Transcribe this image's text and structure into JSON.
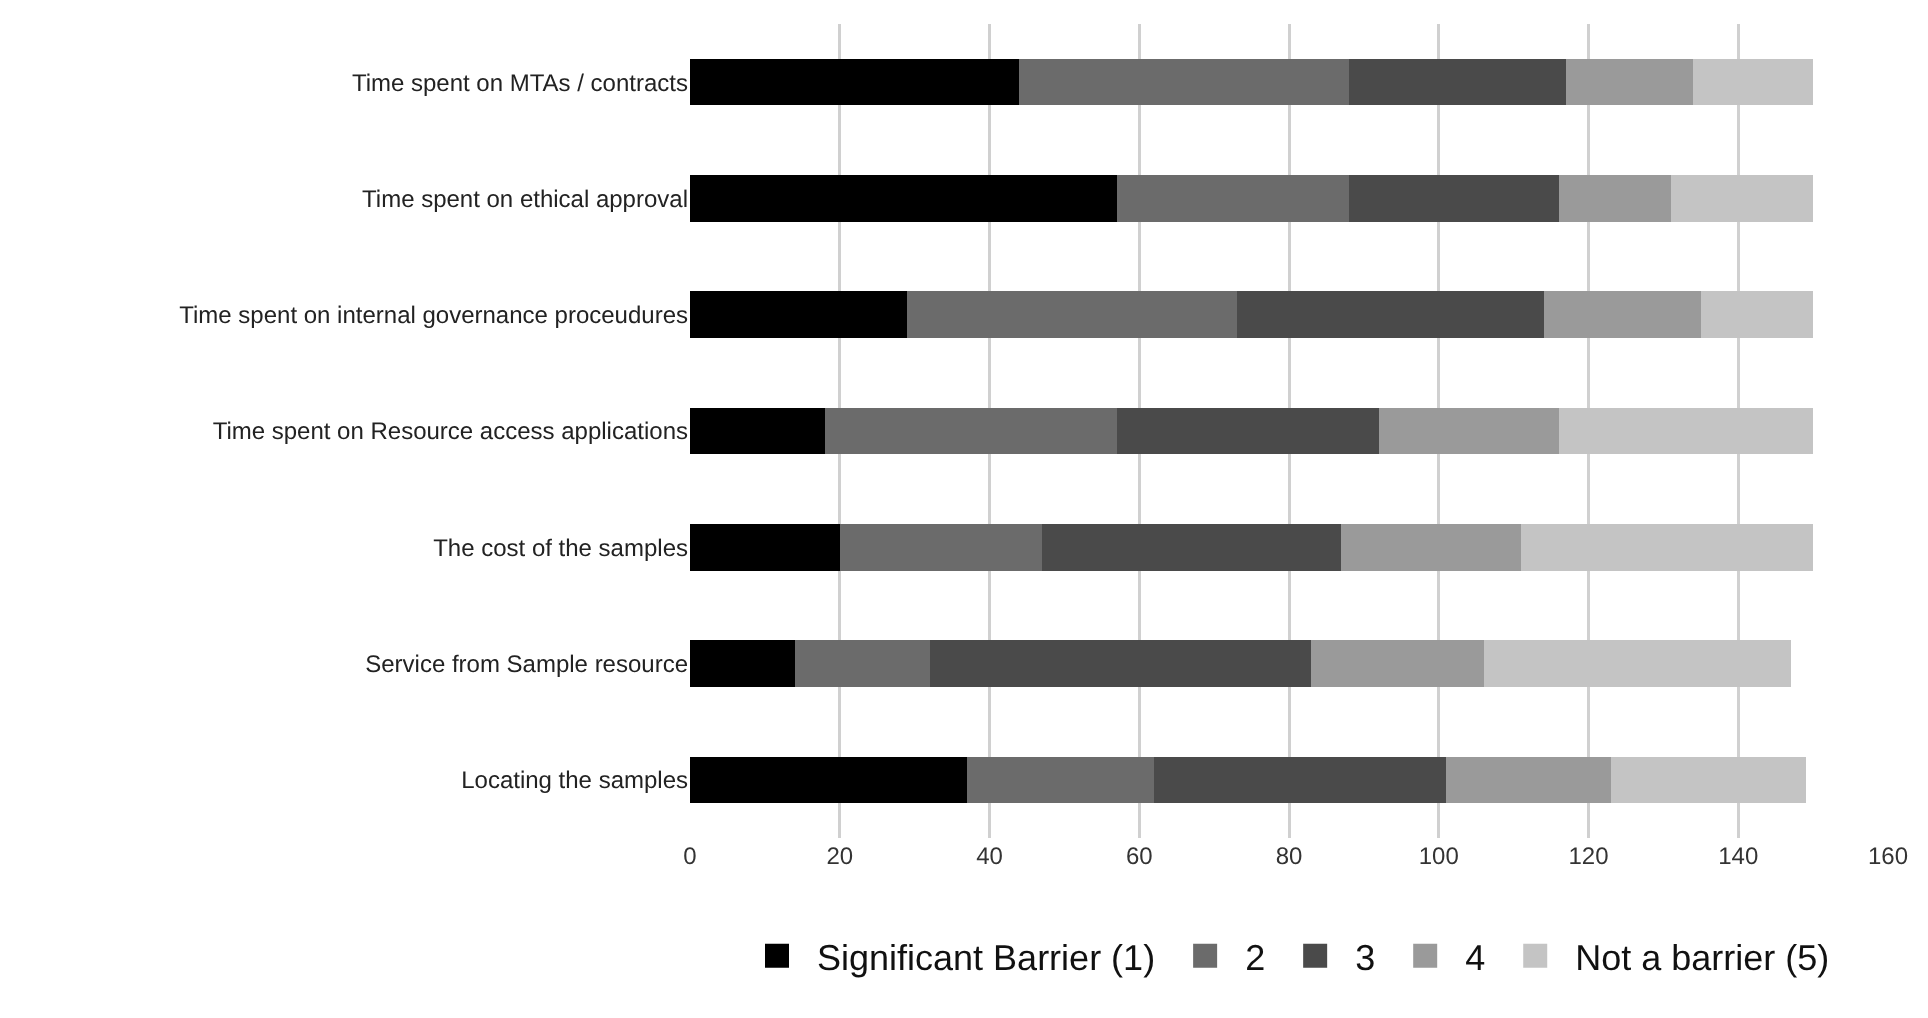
{
  "chart_data": {
    "type": "bar",
    "orientation": "horizontal",
    "stacked": true,
    "categories": [
      "Time spent on MTAs / contracts",
      "Time spent on ethical approval",
      "Time spent on internal governance proceudures",
      "Time spent on Resource access applications",
      "The cost of the samples",
      "Service from Sample resource",
      "Locating the samples"
    ],
    "series": [
      {
        "name": "Significant Barrier (1)",
        "color": "#000000",
        "values": [
          44,
          57,
          29,
          18,
          20,
          14,
          37
        ]
      },
      {
        "name": "2",
        "color": "#6b6b6b",
        "values": [
          44,
          31,
          44,
          39,
          27,
          18,
          25
        ]
      },
      {
        "name": "3",
        "color": "#4a4a4a",
        "values": [
          29,
          28,
          41,
          35,
          40,
          51,
          39
        ]
      },
      {
        "name": "4",
        "color": "#9a9a9a",
        "values": [
          17,
          15,
          21,
          24,
          24,
          23,
          22
        ]
      },
      {
        "name": "Not a barrier (5)",
        "color": "#c4c4c4",
        "values": [
          16,
          19,
          15,
          34,
          39,
          41,
          26
        ]
      }
    ],
    "xlim": [
      0,
      160
    ],
    "xticks": [
      0,
      20,
      40,
      60,
      80,
      100,
      120,
      140,
      160
    ],
    "grid": "x",
    "legend": "bottom"
  }
}
